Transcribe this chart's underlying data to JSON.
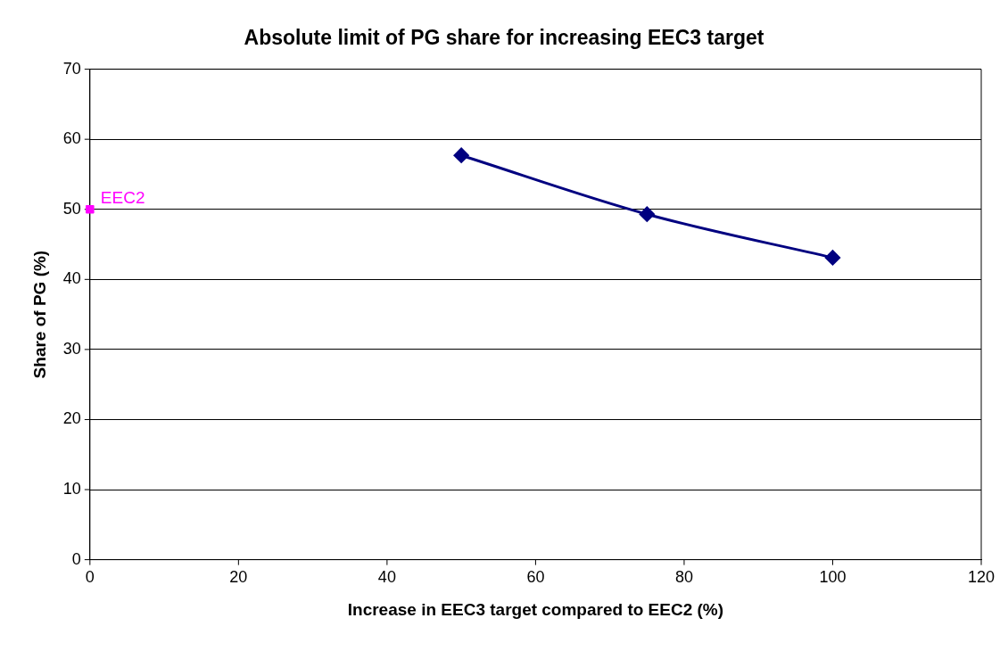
{
  "chart_data": {
    "type": "line",
    "title": "Absolute limit of PG share for increasing EEC3 target",
    "xlabel": "Increase in EEC3 target compared to EEC2 (%)",
    "ylabel": "Share of PG (%)",
    "xlim": [
      0,
      120
    ],
    "xticks": [
      0,
      20,
      40,
      60,
      80,
      100,
      120
    ],
    "ylim": [
      0,
      70
    ],
    "yticks": [
      0,
      10,
      20,
      30,
      40,
      50,
      60,
      70
    ],
    "grid": "y",
    "legend": false,
    "series": [
      {
        "type": "line",
        "color": "#000080",
        "marker": "diamond",
        "x": [
          50,
          75,
          100
        ],
        "values": [
          57.7,
          49.3,
          43.1
        ]
      },
      {
        "type": "scatter",
        "color": "#ff00ff",
        "marker": "square",
        "x": [
          0
        ],
        "values": [
          50
        ]
      }
    ],
    "annotations": [
      {
        "text": "EEC2",
        "x": 0,
        "y": 50
      }
    ]
  }
}
